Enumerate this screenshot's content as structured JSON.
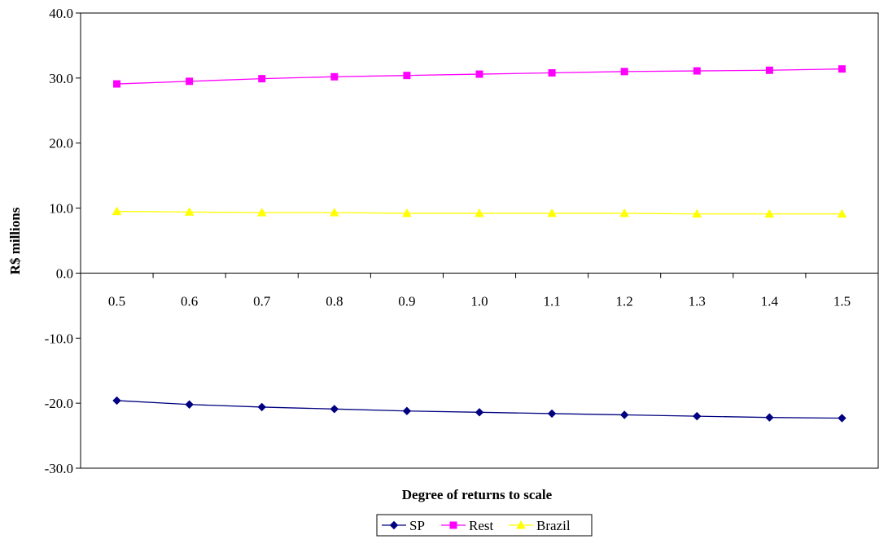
{
  "chart_data": {
    "type": "line",
    "title": "",
    "xlabel": "Degree of returns to scale",
    "ylabel": "R$ millions",
    "x": [
      "0.5",
      "0.6",
      "0.7",
      "0.8",
      "0.9",
      "1.0",
      "1.1",
      "1.2",
      "1.3",
      "1.4",
      "1.5"
    ],
    "y_ticks": [
      "40.0",
      "30.0",
      "20.0",
      "10.0",
      "0.0",
      "-10.0",
      "-20.0",
      "-30.0"
    ],
    "ylim": [
      -30,
      40
    ],
    "grid": false,
    "legend_position": "bottom",
    "series": [
      {
        "name": "SP",
        "color": "#000080",
        "marker": "diamond",
        "values": [
          -19.6,
          -20.2,
          -20.6,
          -20.9,
          -21.2,
          -21.4,
          -21.6,
          -21.8,
          -22.0,
          -22.2,
          -22.3
        ]
      },
      {
        "name": "Rest",
        "color": "#FF00FF",
        "marker": "square",
        "values": [
          29.1,
          29.5,
          29.9,
          30.2,
          30.4,
          30.6,
          30.8,
          31.0,
          31.1,
          31.2,
          31.4
        ]
      },
      {
        "name": "Brazil",
        "color": "#FFFF00",
        "marker": "triangle",
        "values": [
          9.5,
          9.4,
          9.3,
          9.3,
          9.2,
          9.2,
          9.2,
          9.2,
          9.1,
          9.1,
          9.1
        ]
      }
    ]
  }
}
